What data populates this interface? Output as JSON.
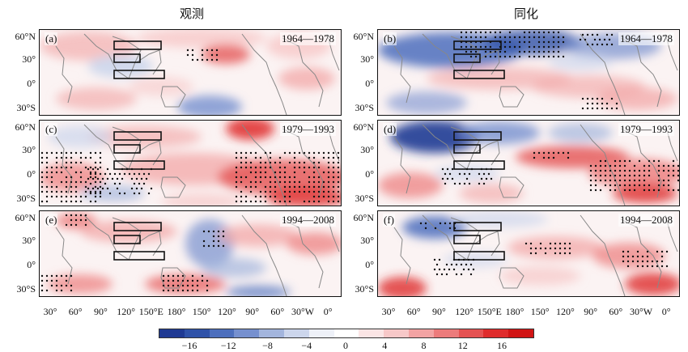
{
  "titles": {
    "left": "观测",
    "right": "同化"
  },
  "panels": [
    {
      "id": "a",
      "label": "(a)",
      "period": "1964—1978",
      "column": "left"
    },
    {
      "id": "b",
      "label": "(b)",
      "period": "1964—1978",
      "column": "right"
    },
    {
      "id": "c",
      "label": "(c)",
      "period": "1979—1993",
      "column": "left"
    },
    {
      "id": "d",
      "label": "(d)",
      "period": "1979—1993",
      "column": "right"
    },
    {
      "id": "e",
      "label": "(e)",
      "period": "1994—2008",
      "column": "left"
    },
    {
      "id": "f",
      "label": "(f)",
      "period": "1994—2008",
      "column": "right"
    }
  ],
  "lat_ticks": [
    "60°N",
    "30°",
    "0°",
    "30°S"
  ],
  "lon_ticks": [
    "30°",
    "60°",
    "90°",
    "120°",
    "150°E",
    "180°",
    "150°",
    "120°",
    "90°",
    "60°",
    "30°W",
    "0°"
  ],
  "colorbar": {
    "ticks": [
      "−16",
      "−12",
      "−8",
      "−4",
      "0",
      "4",
      "8",
      "12",
      "16"
    ],
    "colors": [
      "#1f3a93",
      "#2f52a8",
      "#4d6fbd",
      "#7690cf",
      "#a3b5dd",
      "#ccd6ec",
      "#eef1f8",
      "#ffffff",
      "#fbe5e5",
      "#f7c8c8",
      "#f2a3a3",
      "#ec7b7b",
      "#e55252",
      "#df2c2c",
      "#d11515"
    ]
  }
}
